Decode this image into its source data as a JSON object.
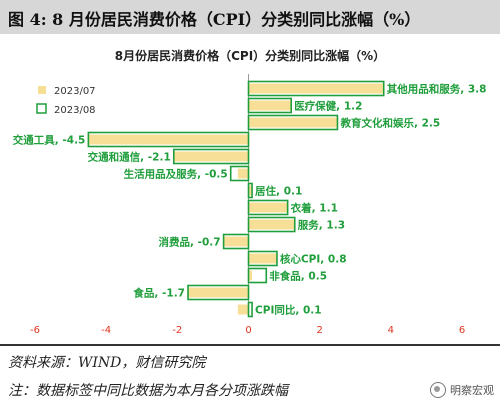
{
  "figure": {
    "title": "图 4: 8 月份居民消费价格（CPI）分类别同比涨幅（%）",
    "source": "资料来源：WIND，财信研究院",
    "remark": "注：数据标签中同比数据为本月各分项涨跌幅",
    "watermark": "明察宏观",
    "watermark_icon": "wechat-icon"
  },
  "chart_data": {
    "type": "bar",
    "orientation": "horizontal",
    "title": "8月份居民消费价格（CPI）分类别同比涨幅（%）",
    "xlim": [
      -6,
      6
    ],
    "xticks": [
      -6,
      -4,
      -2,
      0,
      2,
      4,
      6
    ],
    "grid": false,
    "legend_position": "top-left",
    "colors": {
      "2023/07": "#f7df98",
      "2023/08": "#1f9e3b",
      "label": "#1f9e3b"
    },
    "series": [
      {
        "name": "2023/07",
        "values": [
          3.8,
          1.2,
          2.5,
          -4.5,
          -2.1,
          -0.3,
          0.1,
          1.1,
          1.3,
          -0.7,
          0.8,
          0.1,
          -1.7,
          -0.3
        ]
      },
      {
        "name": "2023/08",
        "values": [
          3.8,
          1.2,
          2.5,
          -4.5,
          -2.1,
          -0.5,
          0.1,
          1.1,
          1.3,
          -0.7,
          0.8,
          0.5,
          -1.7,
          0.1
        ]
      }
    ],
    "categories": [
      "其他用品和服务",
      "医疗保健",
      "教育文化和娱乐",
      "交通工具",
      "交通和通信",
      "生活用品及服务",
      "居住",
      "衣着",
      "服务",
      "消费品",
      "核心CPI",
      "非食品",
      "食品",
      "CPI同比"
    ],
    "labels": [
      "其他用品和服务, 3.8",
      "医疗保健, 1.2",
      "教育文化和娱乐, 2.5",
      "交通工具, -4.5",
      "交通和通信, -2.1",
      "生活用品及服务, -0.5",
      "居住, 0.1",
      "衣着, 1.1",
      "服务, 1.3",
      "消费品, -0.7",
      "核心CPI, 0.8",
      "非食品, 0.5",
      "食品, -1.7",
      "CPI同比, 0.1"
    ]
  }
}
